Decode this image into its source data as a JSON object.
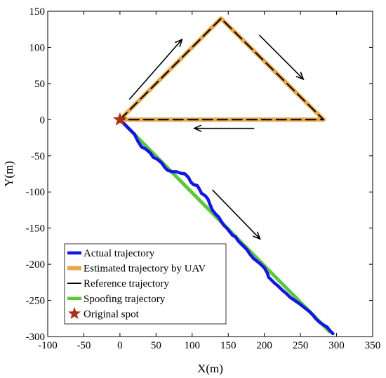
{
  "chart_data": {
    "type": "line",
    "xlabel": "X(m)",
    "ylabel": "Y(m)",
    "xlim": [
      -100,
      350
    ],
    "ylim": [
      -300,
      150
    ],
    "xticks": [
      -100,
      -50,
      0,
      50,
      100,
      150,
      200,
      250,
      300,
      350
    ],
    "yticks": [
      -300,
      -250,
      -200,
      -150,
      -100,
      -50,
      0,
      50,
      100,
      150
    ],
    "grid": false,
    "legend_position": "bottom-left",
    "series": [
      {
        "name": "Actual trajectory",
        "color": "#1515e6",
        "style": "solid-thick",
        "points": [
          [
            0,
            0
          ],
          [
            10,
            -10
          ],
          [
            20,
            -20
          ],
          [
            25,
            -30
          ],
          [
            30,
            -38
          ],
          [
            35,
            -40
          ],
          [
            42,
            -46
          ],
          [
            46,
            -52
          ],
          [
            52,
            -55
          ],
          [
            58,
            -60
          ],
          [
            62,
            -66
          ],
          [
            66,
            -70
          ],
          [
            72,
            -72
          ],
          [
            78,
            -72
          ],
          [
            84,
            -74
          ],
          [
            90,
            -75
          ],
          [
            95,
            -80
          ],
          [
            98,
            -86
          ],
          [
            102,
            -90
          ],
          [
            107,
            -91
          ],
          [
            110,
            -96
          ],
          [
            113,
            -102
          ],
          [
            118,
            -105
          ],
          [
            122,
            -110
          ],
          [
            125,
            -118
          ],
          [
            128,
            -125
          ],
          [
            132,
            -130
          ],
          [
            137,
            -135
          ],
          [
            140,
            -140
          ],
          [
            144,
            -146
          ],
          [
            148,
            -150
          ],
          [
            152,
            -155
          ],
          [
            156,
            -160
          ],
          [
            160,
            -162
          ],
          [
            164,
            -168
          ],
          [
            168,
            -172
          ],
          [
            172,
            -176
          ],
          [
            176,
            -180
          ],
          [
            180,
            -186
          ],
          [
            185,
            -192
          ],
          [
            190,
            -196
          ],
          [
            195,
            -200
          ],
          [
            200,
            -205
          ],
          [
            204,
            -212
          ],
          [
            206,
            -218
          ],
          [
            210,
            -222
          ],
          [
            214,
            -226
          ],
          [
            219,
            -230
          ],
          [
            225,
            -236
          ],
          [
            230,
            -240
          ],
          [
            236,
            -246
          ],
          [
            242,
            -250
          ],
          [
            248,
            -254
          ],
          [
            253,
            -258
          ],
          [
            258,
            -262
          ],
          [
            263,
            -266
          ],
          [
            267,
            -270
          ],
          [
            271,
            -275
          ],
          [
            276,
            -280
          ],
          [
            282,
            -284
          ],
          [
            287,
            -287
          ],
          [
            291,
            -292
          ],
          [
            295,
            -296
          ]
        ]
      },
      {
        "name": "Estimated trajectory by UAV",
        "color": "#e6a84c",
        "style": "solid-thick",
        "points": [
          [
            0,
            0
          ],
          [
            140,
            140
          ],
          [
            282,
            0
          ],
          [
            0,
            0
          ]
        ]
      },
      {
        "name": "Reference trajectory",
        "color": "#000000",
        "style": "dashed",
        "points": [
          [
            0,
            0
          ],
          [
            140,
            140
          ],
          [
            282,
            0
          ],
          [
            0,
            0
          ]
        ]
      },
      {
        "name": "Spoofing trajectory",
        "color": "#5ac83c",
        "style": "solid-thick",
        "points": [
          [
            0,
            0
          ],
          [
            290,
            -293
          ]
        ]
      }
    ],
    "marker": {
      "name": "Original spot",
      "color": "#a8321c",
      "shape": "star",
      "x": 0,
      "y": 0
    },
    "direction_arrows": [
      {
        "from": [
          13,
          28
        ],
        "to": [
          86,
          111
        ]
      },
      {
        "from": [
          193,
          117
        ],
        "to": [
          254,
          56
        ]
      },
      {
        "from": [
          186,
          -12
        ],
        "to": [
          103,
          -12
        ]
      },
      {
        "from": [
          128,
          -97
        ],
        "to": [
          194,
          -165
        ]
      }
    ]
  }
}
